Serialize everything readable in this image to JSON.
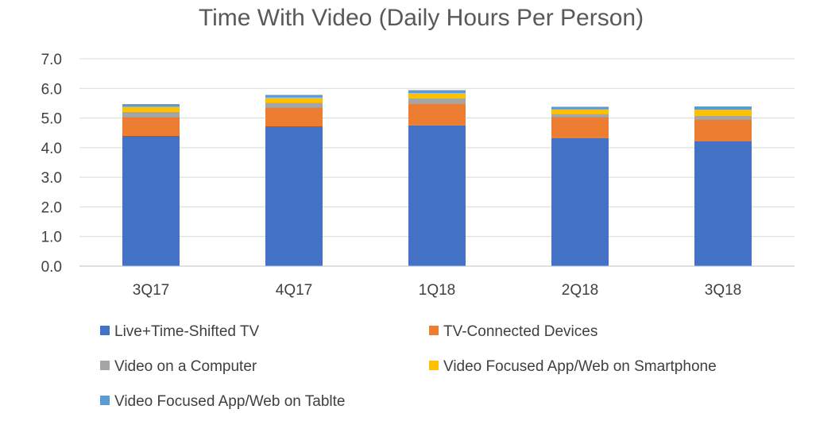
{
  "chart_data": {
    "type": "bar",
    "stacked": true,
    "title": "Time With Video (Daily Hours Per Person)",
    "xlabel": "",
    "ylabel": "",
    "ylim": [
      0,
      7
    ],
    "yticks": [
      "0.0",
      "1.0",
      "2.0",
      "3.0",
      "4.0",
      "5.0",
      "6.0",
      "7.0"
    ],
    "grid": true,
    "legend_position": "bottom",
    "categories": [
      "3Q17",
      "4Q17",
      "1Q18",
      "2Q18",
      "3Q18"
    ],
    "series": [
      {
        "name": "Live+Time-Shifted TV",
        "color": "#4472c4",
        "values": [
          4.4,
          4.72,
          4.75,
          4.32,
          4.22
        ]
      },
      {
        "name": "TV-Connected Devices",
        "color": "#ed7d31",
        "values": [
          0.63,
          0.63,
          0.74,
          0.72,
          0.73
        ]
      },
      {
        "name": "Video on a Computer",
        "color": "#a5a5a5",
        "values": [
          0.18,
          0.17,
          0.17,
          0.1,
          0.12
        ]
      },
      {
        "name": "Video Focused App/Web on Smartphone",
        "color": "#ffc000",
        "values": [
          0.17,
          0.17,
          0.18,
          0.15,
          0.21
        ]
      },
      {
        "name": "Video Focused App/Web on Tablte",
        "color": "#5b9bd5",
        "values": [
          0.09,
          0.09,
          0.1,
          0.09,
          0.11
        ]
      }
    ]
  }
}
